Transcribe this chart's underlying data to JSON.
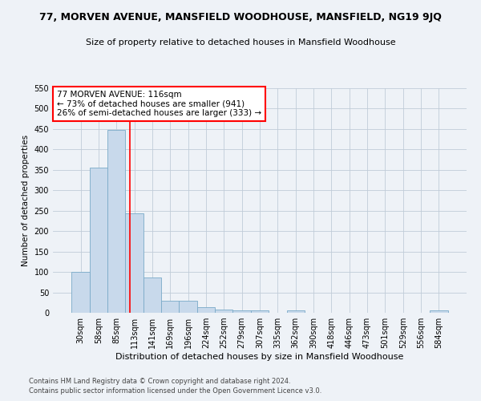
{
  "title": "77, MORVEN AVENUE, MANSFIELD WOODHOUSE, MANSFIELD, NG19 9JQ",
  "subtitle": "Size of property relative to detached houses in Mansfield Woodhouse",
  "xlabel": "Distribution of detached houses by size in Mansfield Woodhouse",
  "ylabel": "Number of detached properties",
  "categories": [
    "30sqm",
    "58sqm",
    "85sqm",
    "113sqm",
    "141sqm",
    "169sqm",
    "196sqm",
    "224sqm",
    "252sqm",
    "279sqm",
    "307sqm",
    "335sqm",
    "362sqm",
    "390sqm",
    "418sqm",
    "446sqm",
    "473sqm",
    "501sqm",
    "529sqm",
    "556sqm",
    "584sqm"
  ],
  "values": [
    100,
    355,
    448,
    243,
    87,
    30,
    30,
    13,
    8,
    5,
    5,
    0,
    5,
    0,
    0,
    0,
    0,
    0,
    0,
    0,
    5
  ],
  "bar_color": "#c8d9eb",
  "bar_edge_color": "#7aaac8",
  "grid_color": "#c0ccd8",
  "property_line_x": 2.73,
  "annotation_text": "77 MORVEN AVENUE: 116sqm\n← 73% of detached houses are smaller (941)\n26% of semi-detached houses are larger (333) →",
  "annotation_box_color": "white",
  "annotation_box_edge_color": "red",
  "property_line_color": "red",
  "ylim": [
    0,
    550
  ],
  "yticks": [
    0,
    50,
    100,
    150,
    200,
    250,
    300,
    350,
    400,
    450,
    500,
    550
  ],
  "footnote1": "Contains HM Land Registry data © Crown copyright and database right 2024.",
  "footnote2": "Contains public sector information licensed under the Open Government Licence v3.0.",
  "title_fontsize": 9,
  "subtitle_fontsize": 8,
  "xlabel_fontsize": 8,
  "ylabel_fontsize": 7.5,
  "tick_fontsize": 7,
  "annotation_fontsize": 7.5,
  "footnote_fontsize": 6,
  "bg_color": "#eef2f7"
}
